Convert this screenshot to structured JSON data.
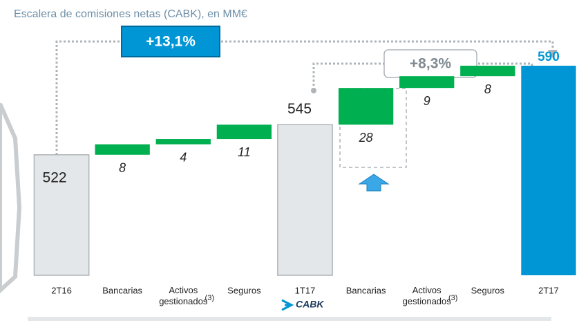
{
  "chart_data": {
    "type": "waterfall",
    "title": "Escalera de comisiones netas (CABK), en MM€",
    "categories": [
      "2T16",
      "Bancarias",
      "Activos gestionados",
      "Seguros",
      "1T17",
      "Bancarias",
      "Activos gestionados",
      "Seguros",
      "2T17"
    ],
    "category_notes": [
      null,
      null,
      "(3)",
      null,
      null,
      null,
      "(3)",
      null,
      null
    ],
    "values": [
      522,
      8,
      4,
      11,
      545,
      28,
      9,
      8,
      590
    ],
    "is_total": [
      true,
      false,
      false,
      false,
      true,
      false,
      false,
      false,
      true
    ],
    "colors": [
      "#e4e7e9",
      "#00b050",
      "#00b050",
      "#00b050",
      "#e4e7e9",
      "#00b050",
      "#00b050",
      "#00b050",
      "#0096d6"
    ],
    "ylim": [
      430,
      590
    ],
    "annotations": [
      "+13,1%",
      "+8,3%"
    ],
    "logo": "CABK"
  }
}
